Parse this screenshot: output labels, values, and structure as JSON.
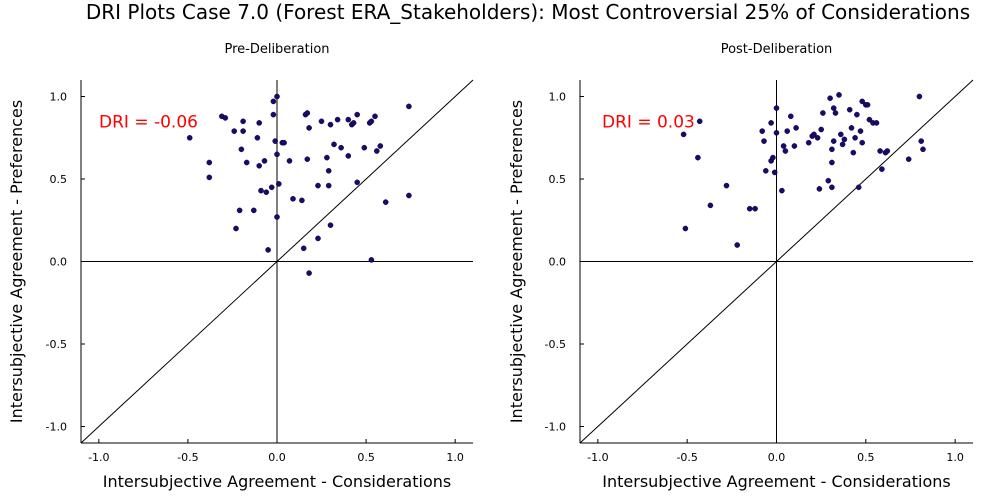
{
  "title": "DRI Plots Case 7.0 (Forest ERA_Stakeholders): Most Controversial 25% of Considerations",
  "colors": {
    "point": "#1a0a6b",
    "dri_text": "#ff0000",
    "axis": "#000000"
  },
  "chart_data": [
    {
      "type": "scatter",
      "subtitle": "Pre-Deliberation",
      "xlabel": "Intersubjective Agreement - Considerations",
      "ylabel": "Intersubjective Agreement - Preferences",
      "xlim": [
        -1.1,
        1.1
      ],
      "ylim": [
        -1.1,
        1.1
      ],
      "xticks": [
        "-1.0",
        "-0.5",
        "0.0",
        "0.5",
        "1.0"
      ],
      "yticks": [
        "-1.0",
        "-0.5",
        "0.0",
        "0.5",
        "1.0"
      ],
      "grid": false,
      "annotation": "DRI = -0.06",
      "points": [
        [
          -0.49,
          0.75
        ],
        [
          -0.38,
          0.6
        ],
        [
          -0.38,
          0.51
        ],
        [
          -0.31,
          0.88
        ],
        [
          -0.29,
          0.87
        ],
        [
          -0.24,
          0.79
        ],
        [
          -0.23,
          0.2
        ],
        [
          -0.21,
          0.31
        ],
        [
          -0.2,
          0.68
        ],
        [
          -0.19,
          0.79
        ],
        [
          -0.19,
          0.85
        ],
        [
          -0.17,
          0.6
        ],
        [
          -0.13,
          0.31
        ],
        [
          -0.11,
          0.75
        ],
        [
          -0.1,
          0.84
        ],
        [
          -0.1,
          0.58
        ],
        [
          -0.09,
          0.43
        ],
        [
          -0.07,
          0.61
        ],
        [
          -0.06,
          0.42
        ],
        [
          -0.05,
          0.07
        ],
        [
          -0.03,
          0.45
        ],
        [
          -0.02,
          0.89
        ],
        [
          -0.02,
          0.97
        ],
        [
          -0.01,
          0.73
        ],
        [
          0.0,
          1.0
        ],
        [
          0.0,
          0.27
        ],
        [
          0.0,
          0.65
        ],
        [
          0.01,
          0.47
        ],
        [
          0.03,
          0.72
        ],
        [
          0.04,
          0.72
        ],
        [
          0.07,
          0.61
        ],
        [
          0.09,
          0.38
        ],
        [
          0.14,
          0.37
        ],
        [
          0.15,
          0.08
        ],
        [
          0.16,
          0.89
        ],
        [
          0.17,
          0.9
        ],
        [
          0.17,
          0.62
        ],
        [
          0.18,
          0.81
        ],
        [
          0.18,
          -0.07
        ],
        [
          0.23,
          0.14
        ],
        [
          0.23,
          0.46
        ],
        [
          0.25,
          0.85
        ],
        [
          0.28,
          0.63
        ],
        [
          0.29,
          0.55
        ],
        [
          0.29,
          0.46
        ],
        [
          0.3,
          0.83
        ],
        [
          0.3,
          0.22
        ],
        [
          0.32,
          0.71
        ],
        [
          0.34,
          0.86
        ],
        [
          0.36,
          0.69
        ],
        [
          0.4,
          0.86
        ],
        [
          0.4,
          0.64
        ],
        [
          0.42,
          0.83
        ],
        [
          0.43,
          0.84
        ],
        [
          0.45,
          0.48
        ],
        [
          0.45,
          0.89
        ],
        [
          0.49,
          0.69
        ],
        [
          0.52,
          0.84
        ],
        [
          0.53,
          0.85
        ],
        [
          0.53,
          0.01
        ],
        [
          0.55,
          0.88
        ],
        [
          0.56,
          0.67
        ],
        [
          0.58,
          0.7
        ],
        [
          0.61,
          0.36
        ],
        [
          0.74,
          0.94
        ],
        [
          0.74,
          0.4
        ]
      ]
    },
    {
      "type": "scatter",
      "subtitle": "Post-Deliberation",
      "xlabel": "Intersubjective Agreement - Considerations",
      "ylabel": "Intersubjective Agreement - Preferences",
      "xlim": [
        -1.1,
        1.1
      ],
      "ylim": [
        -1.1,
        1.1
      ],
      "xticks": [
        "-1.0",
        "-0.5",
        "0.0",
        "0.5",
        "1.0"
      ],
      "yticks": [
        "-1.0",
        "-0.5",
        "0.0",
        "0.5",
        "1.0"
      ],
      "grid": false,
      "annotation": "DRI = 0.03",
      "points": [
        [
          -0.52,
          0.77
        ],
        [
          -0.51,
          0.2
        ],
        [
          -0.44,
          0.63
        ],
        [
          -0.43,
          0.85
        ],
        [
          -0.37,
          0.34
        ],
        [
          -0.28,
          0.46
        ],
        [
          -0.22,
          0.1
        ],
        [
          -0.15,
          0.32
        ],
        [
          -0.12,
          0.32
        ],
        [
          -0.08,
          0.79
        ],
        [
          -0.07,
          0.73
        ],
        [
          -0.06,
          0.55
        ],
        [
          -0.03,
          0.84
        ],
        [
          -0.03,
          0.61
        ],
        [
          -0.02,
          0.63
        ],
        [
          -0.01,
          0.54
        ],
        [
          0.0,
          0.93
        ],
        [
          0.0,
          0.78
        ],
        [
          0.03,
          0.43
        ],
        [
          0.04,
          0.7
        ],
        [
          0.05,
          0.67
        ],
        [
          0.06,
          0.79
        ],
        [
          0.08,
          0.88
        ],
        [
          0.1,
          0.7
        ],
        [
          0.11,
          0.81
        ],
        [
          0.18,
          0.72
        ],
        [
          0.2,
          0.76
        ],
        [
          0.21,
          0.77
        ],
        [
          0.23,
          0.75
        ],
        [
          0.24,
          0.44
        ],
        [
          0.25,
          0.8
        ],
        [
          0.26,
          0.9
        ],
        [
          0.29,
          0.49
        ],
        [
          0.3,
          0.99
        ],
        [
          0.31,
          0.6
        ],
        [
          0.31,
          0.68
        ],
        [
          0.31,
          0.45
        ],
        [
          0.32,
          0.73
        ],
        [
          0.32,
          0.93
        ],
        [
          0.33,
          0.9
        ],
        [
          0.35,
          1.01
        ],
        [
          0.36,
          0.77
        ],
        [
          0.37,
          0.71
        ],
        [
          0.38,
          0.74
        ],
        [
          0.41,
          0.92
        ],
        [
          0.42,
          0.81
        ],
        [
          0.43,
          0.66
        ],
        [
          0.44,
          0.75
        ],
        [
          0.45,
          0.89
        ],
        [
          0.46,
          0.45
        ],
        [
          0.47,
          0.79
        ],
        [
          0.48,
          0.72
        ],
        [
          0.48,
          0.97
        ],
        [
          0.5,
          0.95
        ],
        [
          0.51,
          0.95
        ],
        [
          0.52,
          0.86
        ],
        [
          0.54,
          0.84
        ],
        [
          0.56,
          0.84
        ],
        [
          0.58,
          0.67
        ],
        [
          0.59,
          0.56
        ],
        [
          0.61,
          0.66
        ],
        [
          0.62,
          0.67
        ],
        [
          0.74,
          0.62
        ],
        [
          0.8,
          1.0
        ],
        [
          0.81,
          0.73
        ],
        [
          0.82,
          0.68
        ]
      ]
    }
  ]
}
